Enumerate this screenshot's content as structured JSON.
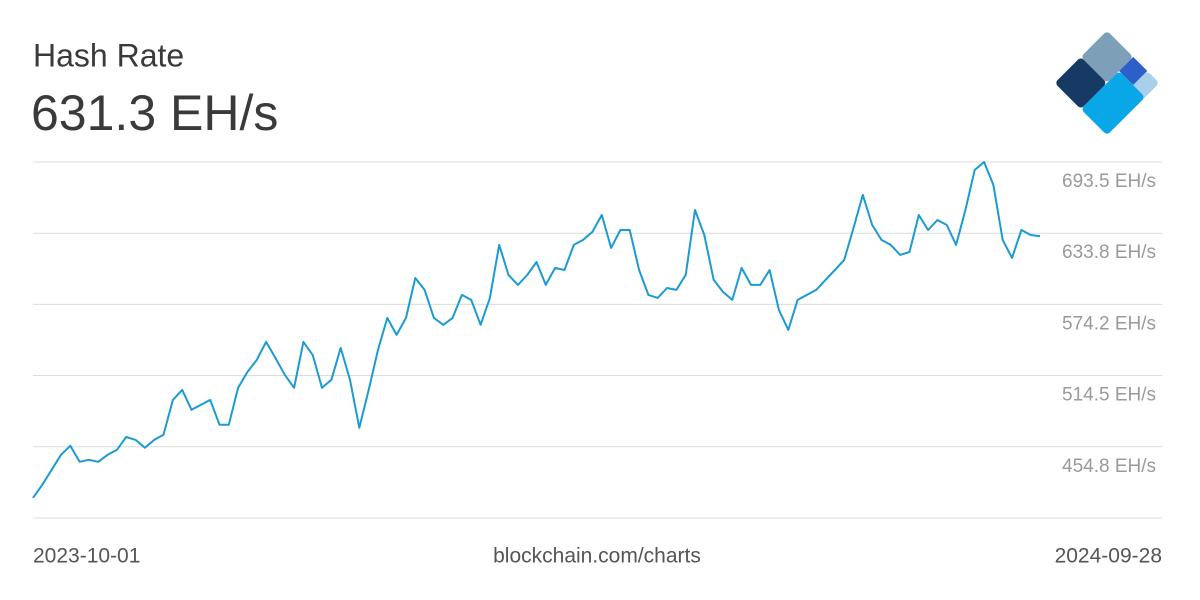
{
  "chart_data": {
    "type": "line",
    "title": "Hash Rate",
    "headline": "631.3 EH/s",
    "source": "blockchain.com/charts",
    "x_start": "2023-10-01",
    "x_end": "2024-09-28",
    "color": "#1b9bd1",
    "grid": true,
    "ylim": [
      395.1,
      693.5
    ],
    "yticks": [
      {
        "value": 693.5,
        "label": "693.5 EH/s"
      },
      {
        "value": 633.8,
        "label": "633.8 EH/s"
      },
      {
        "value": 574.2,
        "label": "574.2 EH/s"
      },
      {
        "value": 514.5,
        "label": "514.5 EH/s"
      },
      {
        "value": 454.8,
        "label": "454.8 EH/s"
      }
    ],
    "values": [
      412.0,
      422.9,
      435.5,
      448.1,
      455.6,
      442.2,
      443.9,
      442.2,
      448.1,
      452.2,
      463.1,
      460.6,
      453.9,
      460.6,
      464.8,
      494.1,
      502.5,
      485.8,
      489.9,
      494.1,
      473.2,
      473.2,
      504.2,
      517.6,
      527.6,
      542.7,
      529.3,
      515.1,
      504.2,
      542.7,
      531.8,
      504.2,
      510.9,
      537.7,
      510.9,
      470.7,
      502.5,
      536.0,
      562.8,
      548.6,
      562.8,
      596.3,
      586.3,
      562.8,
      557.0,
      562.8,
      582.1,
      577.9,
      557.0,
      579.6,
      624.0,
      598.8,
      590.5,
      598.8,
      609.7,
      590.5,
      604.7,
      603.0,
      624.0,
      628.2,
      634.9,
      649.1,
      621.5,
      636.5,
      636.5,
      603.0,
      582.1,
      579.6,
      587.9,
      586.3,
      598.8,
      653.3,
      632.3,
      594.7,
      584.6,
      577.9,
      604.7,
      590.5,
      590.5,
      603.0,
      569.5,
      552.8,
      577.9,
      582.1,
      586.3,
      594.7,
      603.0,
      611.4,
      638.2,
      665.9,
      640.7,
      628.2,
      624.0,
      615.6,
      618.1,
      649.1,
      636.5,
      644.9,
      640.7,
      624.0,
      653.3,
      686.8,
      693.5,
      674.2,
      628.2,
      613.1,
      636.5,
      632.3,
      631.3
    ]
  }
}
